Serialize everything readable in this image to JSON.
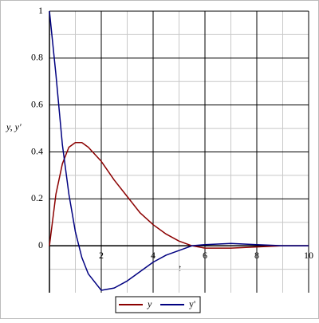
{
  "chart_data": {
    "type": "line",
    "x_label": "t",
    "y_label": "y, y'",
    "x": [
      0,
      0.25,
      0.5,
      0.75,
      1,
      1.25,
      1.5,
      2,
      2.5,
      3,
      3.5,
      4,
      4.5,
      5,
      5.5,
      6,
      7,
      8,
      9,
      10
    ],
    "series": [
      {
        "name": "y",
        "color": "#8b0000",
        "values": [
          0,
          0.22,
          0.35,
          0.42,
          0.44,
          0.44,
          0.42,
          0.36,
          0.28,
          0.21,
          0.14,
          0.09,
          0.05,
          0.02,
          0,
          -0.01,
          -0.01,
          -0.005,
          0,
          0
        ]
      },
      {
        "name": "y'",
        "color": "#000080",
        "values": [
          1,
          0.73,
          0.43,
          0.22,
          0.06,
          -0.05,
          -0.12,
          -0.19,
          -0.18,
          -0.15,
          -0.11,
          -0.07,
          -0.04,
          -0.02,
          0,
          0.005,
          0.01,
          0.005,
          0,
          0
        ]
      }
    ],
    "xlim": [
      0,
      10
    ],
    "ylim": [
      -0.2,
      1
    ],
    "xticks": [
      2,
      4,
      6,
      8,
      10
    ],
    "yticks": [
      0,
      0.2,
      0.4,
      0.6,
      0.8,
      1
    ],
    "minor_xticks": [
      1,
      3,
      5,
      7,
      9
    ],
    "minor_yticks": [
      -0.1,
      0.1,
      0.3,
      0.5,
      0.7,
      0.9
    ],
    "grid": true,
    "legend": "bottom"
  }
}
